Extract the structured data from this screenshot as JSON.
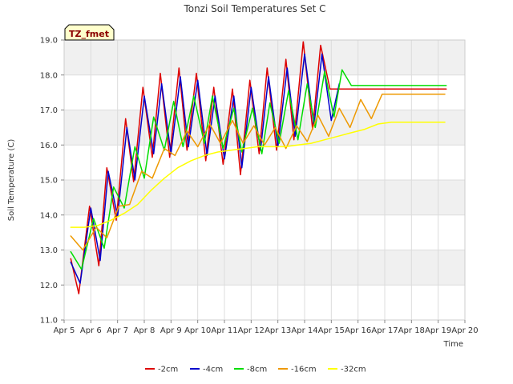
{
  "chart_data": {
    "type": "line",
    "title": "Tonzi Soil Temperatures Set C",
    "xlabel": "Time",
    "ylabel": "Soil Temperature (C)",
    "site_label": "TZ_fmet",
    "xlim": [
      5,
      20
    ],
    "ylim": [
      11,
      19
    ],
    "x_ticks": [
      5,
      6,
      7,
      8,
      9,
      10,
      11,
      12,
      13,
      14,
      15,
      16,
      17,
      18,
      19,
      20
    ],
    "x_tick_labels": [
      "Apr 5",
      "Apr 6",
      "Apr 7",
      "Apr 8",
      "Apr 9",
      "Apr 10",
      "Apr 11",
      "Apr 12",
      "Apr 13",
      "Apr 14",
      "Apr 15",
      "Apr 16",
      "Apr 17",
      "Apr 18",
      "Apr 19",
      "Apr 20"
    ],
    "y_ticks": [
      11,
      12,
      13,
      14,
      15,
      16,
      17,
      18,
      19
    ],
    "y_tick_labels": [
      "11.0",
      "12.0",
      "13.0",
      "14.0",
      "15.0",
      "16.0",
      "17.0",
      "18.0",
      "19.0"
    ],
    "grid": true,
    "legend_position": "bottom",
    "series": [
      {
        "name": "-2cm",
        "color": "#dd0000",
        "x": [
          5.25,
          5.55,
          5.95,
          6.3,
          6.6,
          6.95,
          7.3,
          7.6,
          7.95,
          8.3,
          8.6,
          8.95,
          9.3,
          9.6,
          9.95,
          10.3,
          10.6,
          10.95,
          11.3,
          11.6,
          11.95,
          12.3,
          12.6,
          12.95,
          13.3,
          13.6,
          13.95,
          14.3,
          14.6,
          14.95,
          15.3,
          15.6,
          15.95,
          16.3,
          16.6,
          16.95,
          17.3,
          17.6,
          17.95,
          18.3,
          18.6,
          18.95,
          19.3
        ],
        "y": [
          12.75,
          11.75,
          14.25,
          12.55,
          15.35,
          13.85,
          16.75,
          14.95,
          17.65,
          15.65,
          18.05,
          15.65,
          18.2,
          15.85,
          18.05,
          15.55,
          17.65,
          15.45,
          17.6,
          15.15,
          17.85,
          15.75,
          18.2,
          15.85,
          18.45,
          16.15,
          18.95,
          16.45,
          18.85,
          17.6,
          17.6,
          17.6,
          17.6,
          17.6,
          17.6,
          17.6,
          17.6,
          17.6,
          17.6,
          17.6,
          17.6,
          17.6,
          17.6
        ]
      },
      {
        "name": "-4cm",
        "color": "#0000cc",
        "x": [
          5.25,
          5.6,
          6.0,
          6.35,
          6.65,
          7.0,
          7.35,
          7.65,
          8.0,
          8.35,
          8.65,
          9.0,
          9.35,
          9.65,
          10.0,
          10.35,
          10.65,
          11.0,
          11.35,
          11.65,
          12.0,
          12.35,
          12.65,
          13.0,
          13.35,
          13.65,
          14.0,
          14.35,
          14.65,
          15.0,
          15.3
        ],
        "y": [
          12.65,
          12.05,
          14.2,
          12.7,
          15.25,
          13.95,
          16.5,
          15.0,
          17.4,
          15.75,
          17.75,
          15.75,
          17.95,
          15.95,
          17.85,
          15.7,
          17.4,
          15.6,
          17.4,
          15.35,
          17.65,
          15.85,
          17.95,
          15.95,
          18.2,
          16.25,
          18.6,
          16.55,
          18.6,
          16.7,
          17.75
        ]
      },
      {
        "name": "-8cm",
        "color": "#00dd00",
        "x": [
          5.25,
          5.65,
          6.1,
          6.5,
          6.85,
          7.25,
          7.65,
          8.0,
          8.35,
          8.75,
          9.1,
          9.45,
          9.85,
          10.25,
          10.55,
          10.95,
          11.35,
          11.65,
          12.05,
          12.4,
          12.7,
          13.05,
          13.4,
          13.75,
          14.1,
          14.4,
          14.75,
          15.1,
          15.4,
          15.75,
          16.1,
          16.4,
          16.75,
          17.1,
          17.4,
          17.75,
          18.1,
          18.4,
          18.75,
          19.1,
          19.3
        ],
        "y": [
          12.95,
          12.45,
          13.9,
          13.05,
          14.8,
          14.2,
          15.95,
          15.05,
          16.8,
          15.85,
          17.25,
          15.95,
          17.4,
          16.05,
          17.4,
          15.9,
          17.05,
          15.8,
          17.05,
          15.75,
          17.2,
          16.05,
          17.55,
          16.15,
          17.75,
          16.5,
          18.1,
          16.8,
          18.15,
          17.7,
          17.7,
          17.7,
          17.7,
          17.7,
          17.7,
          17.7,
          17.7,
          17.7,
          17.7,
          17.7,
          17.7
        ]
      },
      {
        "name": "-16cm",
        "color": "#ee9900",
        "x": [
          5.25,
          5.7,
          6.2,
          6.6,
          7.05,
          7.45,
          7.9,
          8.3,
          8.75,
          9.15,
          9.6,
          10.0,
          10.45,
          10.85,
          11.3,
          11.7,
          12.1,
          12.5,
          12.9,
          13.3,
          13.7,
          14.1,
          14.5,
          14.9,
          15.3,
          15.7,
          16.1,
          16.5,
          16.9,
          17.3,
          17.7,
          18.1,
          18.5,
          18.9,
          19.25
        ],
        "y": [
          13.4,
          13.0,
          13.65,
          13.35,
          14.25,
          14.3,
          15.25,
          15.05,
          15.9,
          15.7,
          16.4,
          15.95,
          16.6,
          16.05,
          16.7,
          16.05,
          16.55,
          16.0,
          16.5,
          15.9,
          16.55,
          16.1,
          16.85,
          16.25,
          17.05,
          16.5,
          17.3,
          16.75,
          17.45,
          17.45,
          17.45,
          17.45,
          17.45,
          17.45,
          17.45
        ]
      },
      {
        "name": "-32cm",
        "color": "#ffff00",
        "x": [
          5.25,
          5.75,
          6.25,
          6.75,
          7.25,
          7.75,
          8.25,
          8.75,
          9.25,
          9.75,
          10.25,
          10.75,
          11.25,
          11.75,
          12.25,
          12.75,
          13.25,
          13.75,
          14.25,
          14.75,
          15.25,
          15.75,
          16.25,
          16.75,
          17.25,
          17.75,
          18.25,
          18.75,
          19.25
        ],
        "y": [
          13.65,
          13.65,
          13.7,
          13.85,
          14.05,
          14.3,
          14.7,
          15.05,
          15.35,
          15.55,
          15.7,
          15.8,
          15.85,
          15.9,
          15.95,
          15.95,
          15.95,
          16.0,
          16.05,
          16.15,
          16.25,
          16.35,
          16.45,
          16.6,
          16.65,
          16.65,
          16.65,
          16.65,
          16.65
        ]
      }
    ]
  }
}
